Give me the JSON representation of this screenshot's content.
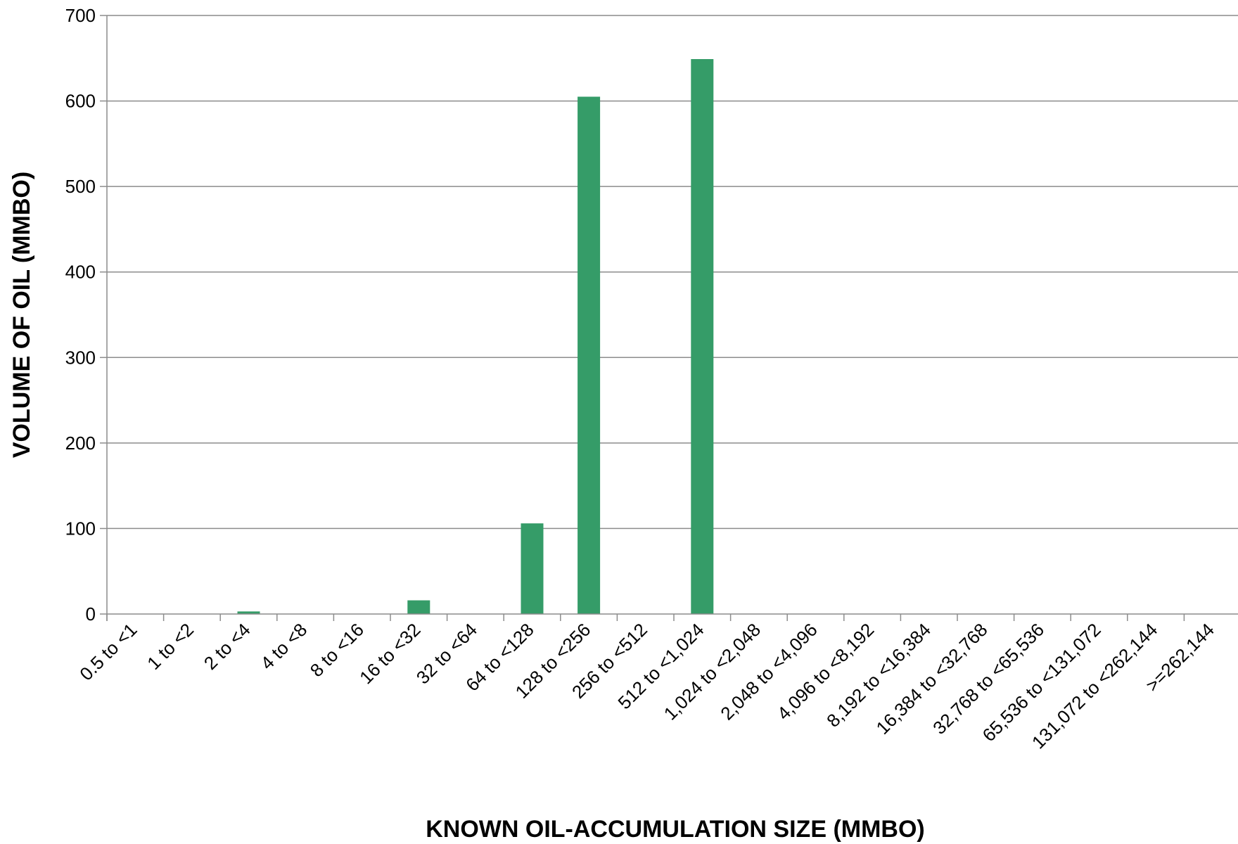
{
  "chart_data": {
    "type": "bar",
    "title": "",
    "xlabel": "KNOWN OIL-ACCUMULATION SIZE (MMBO)",
    "ylabel": "VOLUME OF OIL (MMBO)",
    "ylim": [
      0,
      700
    ],
    "yticks": [
      0,
      100,
      200,
      300,
      400,
      500,
      600,
      700
    ],
    "grid": "horizontal",
    "legend": "none",
    "categories": [
      "0.5 to <1",
      "1 to <2",
      "2 to <4",
      "4 to <8",
      "8 to <16",
      "16 to <32",
      "32 to <64",
      "64 to <128",
      "128 to <256",
      "256 to <512",
      "512 to <1,024",
      "1,024 to <2,048",
      "2,048 to <4,096",
      "4,096 to <8,192",
      "8,192 to <16,384",
      "16,384 to <32,768",
      "32,768 to <65,536",
      "65,536 to <131,072",
      "131,072 to <262,144",
      ">=262,144"
    ],
    "values": [
      0,
      0,
      3,
      0,
      0,
      16,
      0,
      106,
      605,
      0,
      649,
      0,
      0,
      0,
      0,
      0,
      0,
      0,
      0,
      0
    ],
    "colors": {
      "bar": "#359c68",
      "grid": "#8c8c8c",
      "axis": "#8c8c8c"
    }
  }
}
